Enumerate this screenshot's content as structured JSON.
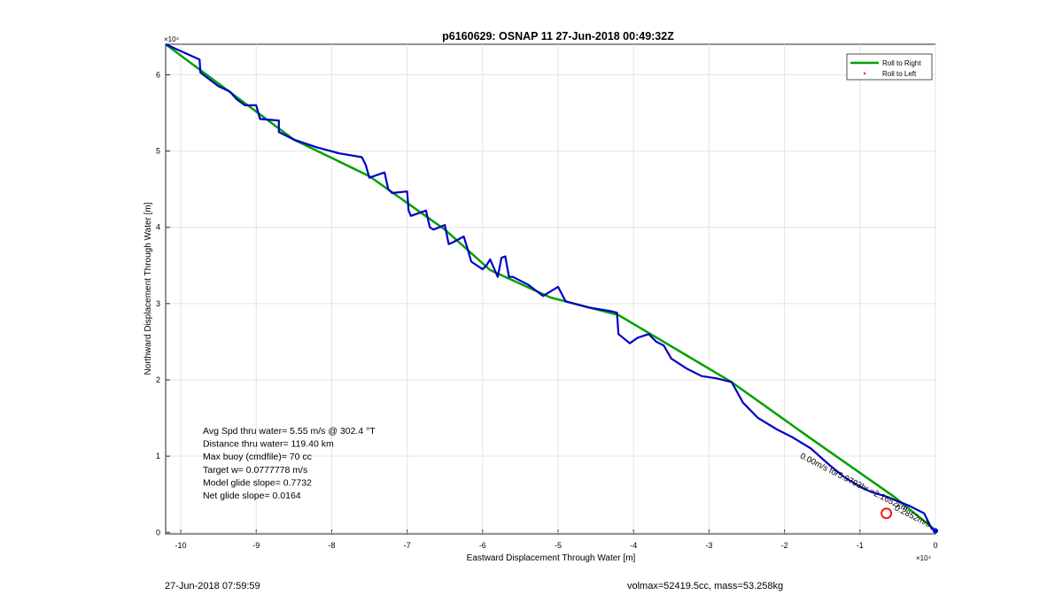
{
  "chart_data": {
    "type": "line",
    "title": "p6160629: OSNAP 11 27-Jun-2018 00:49:32Z",
    "xlabel": "Eastward Displacement Through Water [m]",
    "ylabel": "Northward Displacement Through Water [m]",
    "x_exponent_label": "×10⁴",
    "y_exponent_label": "×10⁴",
    "xlim": [
      -10.2,
      0
    ],
    "ylim": [
      -0.02,
      6.4
    ],
    "x_ticks": [
      -10,
      -9,
      -8,
      -7,
      -6,
      -5,
      -4,
      -3,
      -2,
      -1,
      0
    ],
    "y_ticks": [
      0,
      1,
      2,
      3,
      4,
      5,
      6
    ],
    "grid": true,
    "legend_position": "top-right",
    "legend": [
      "Roll to Right",
      "Roll to Left"
    ],
    "series": [
      {
        "name": "Roll to Right",
        "color": "#00a000",
        "x": [
          -10.2,
          -8.5,
          -7.5,
          -6.5,
          -5.9,
          -5.1,
          -4.2,
          -2.7,
          -1.65,
          -0.55,
          0
        ],
        "y": [
          6.4,
          5.15,
          4.67,
          3.97,
          3.44,
          3.08,
          2.85,
          1.97,
          1.23,
          0.47,
          0.03
        ]
      },
      {
        "name": "Roll to Left",
        "color": "#ff0000",
        "x": [],
        "y": []
      },
      {
        "name": "Track",
        "color": "#0000c8",
        "x": [
          -10.2,
          -9.75,
          -9.74,
          -9.5,
          -9.35,
          -9.26,
          -9.15,
          -9.0,
          -8.95,
          -8.7,
          -8.7,
          -8.5,
          -8.2,
          -7.9,
          -7.6,
          -7.55,
          -7.5,
          -7.3,
          -7.25,
          -7.2,
          -7.0,
          -6.98,
          -6.95,
          -6.75,
          -6.7,
          -6.65,
          -6.5,
          -6.45,
          -6.4,
          -6.25,
          -6.2,
          -6.15,
          -6.0,
          -5.95,
          -5.9,
          -5.8,
          -5.75,
          -5.7,
          -5.65,
          -5.6,
          -5.4,
          -5.2,
          -5.0,
          -4.9,
          -4.6,
          -4.3,
          -4.22,
          -4.2,
          -4.05,
          -3.95,
          -3.8,
          -3.7,
          -3.6,
          -3.5,
          -3.3,
          -3.1,
          -2.9,
          -2.7,
          -2.55,
          -2.35,
          -2.1,
          -1.9,
          -1.65,
          -1.4,
          -1.2,
          -1.0,
          -0.85,
          -0.65,
          -0.35,
          -0.15,
          -0.05,
          0
        ],
        "y": [
          6.4,
          6.2,
          6.03,
          5.85,
          5.78,
          5.68,
          5.6,
          5.6,
          5.42,
          5.4,
          5.25,
          5.15,
          5.05,
          4.97,
          4.92,
          4.82,
          4.65,
          4.72,
          4.5,
          4.45,
          4.47,
          4.22,
          4.15,
          4.22,
          4.0,
          3.97,
          4.03,
          3.78,
          3.8,
          3.88,
          3.72,
          3.55,
          3.45,
          3.5,
          3.58,
          3.35,
          3.6,
          3.62,
          3.35,
          3.35,
          3.25,
          3.1,
          3.22,
          3.03,
          2.95,
          2.9,
          2.88,
          2.6,
          2.48,
          2.55,
          2.6,
          2.5,
          2.45,
          2.28,
          2.15,
          2.05,
          2.02,
          1.97,
          1.7,
          1.5,
          1.35,
          1.25,
          1.1,
          0.88,
          0.72,
          0.6,
          0.53,
          0.47,
          0.35,
          0.25,
          0.05,
          0.02
        ]
      }
    ],
    "marker_circle": {
      "x": -0.65,
      "y": 0.25,
      "color": "#ff0000"
    },
    "annotations": [
      {
        "text": "Avg Spd thru water=  5.55 m/s @ 302.4 °T"
      },
      {
        "text": "Distance thru water= 119.40 km"
      },
      {
        "text": "Max buoy (cmdfile)= 70 cc"
      },
      {
        "text": "Target w= 0.0777778 m/s"
      },
      {
        "text": "Model glide slope= 0.7732"
      },
      {
        "text": "Net glide slope= 0.0164"
      }
    ],
    "rotated_labels": [
      {
        "text": "0.00m/s for5.9793hr =2.1652km",
        "x": -1.8,
        "y": 0.98,
        "angle": 27
      },
      {
        "text": "0.2852m/s",
        "x": -0.55,
        "y": 0.3,
        "angle": 27
      }
    ]
  },
  "footer": {
    "left": "27-Jun-2018 07:59:59",
    "right": "volmax=52419.5cc, mass=53.258kg"
  }
}
